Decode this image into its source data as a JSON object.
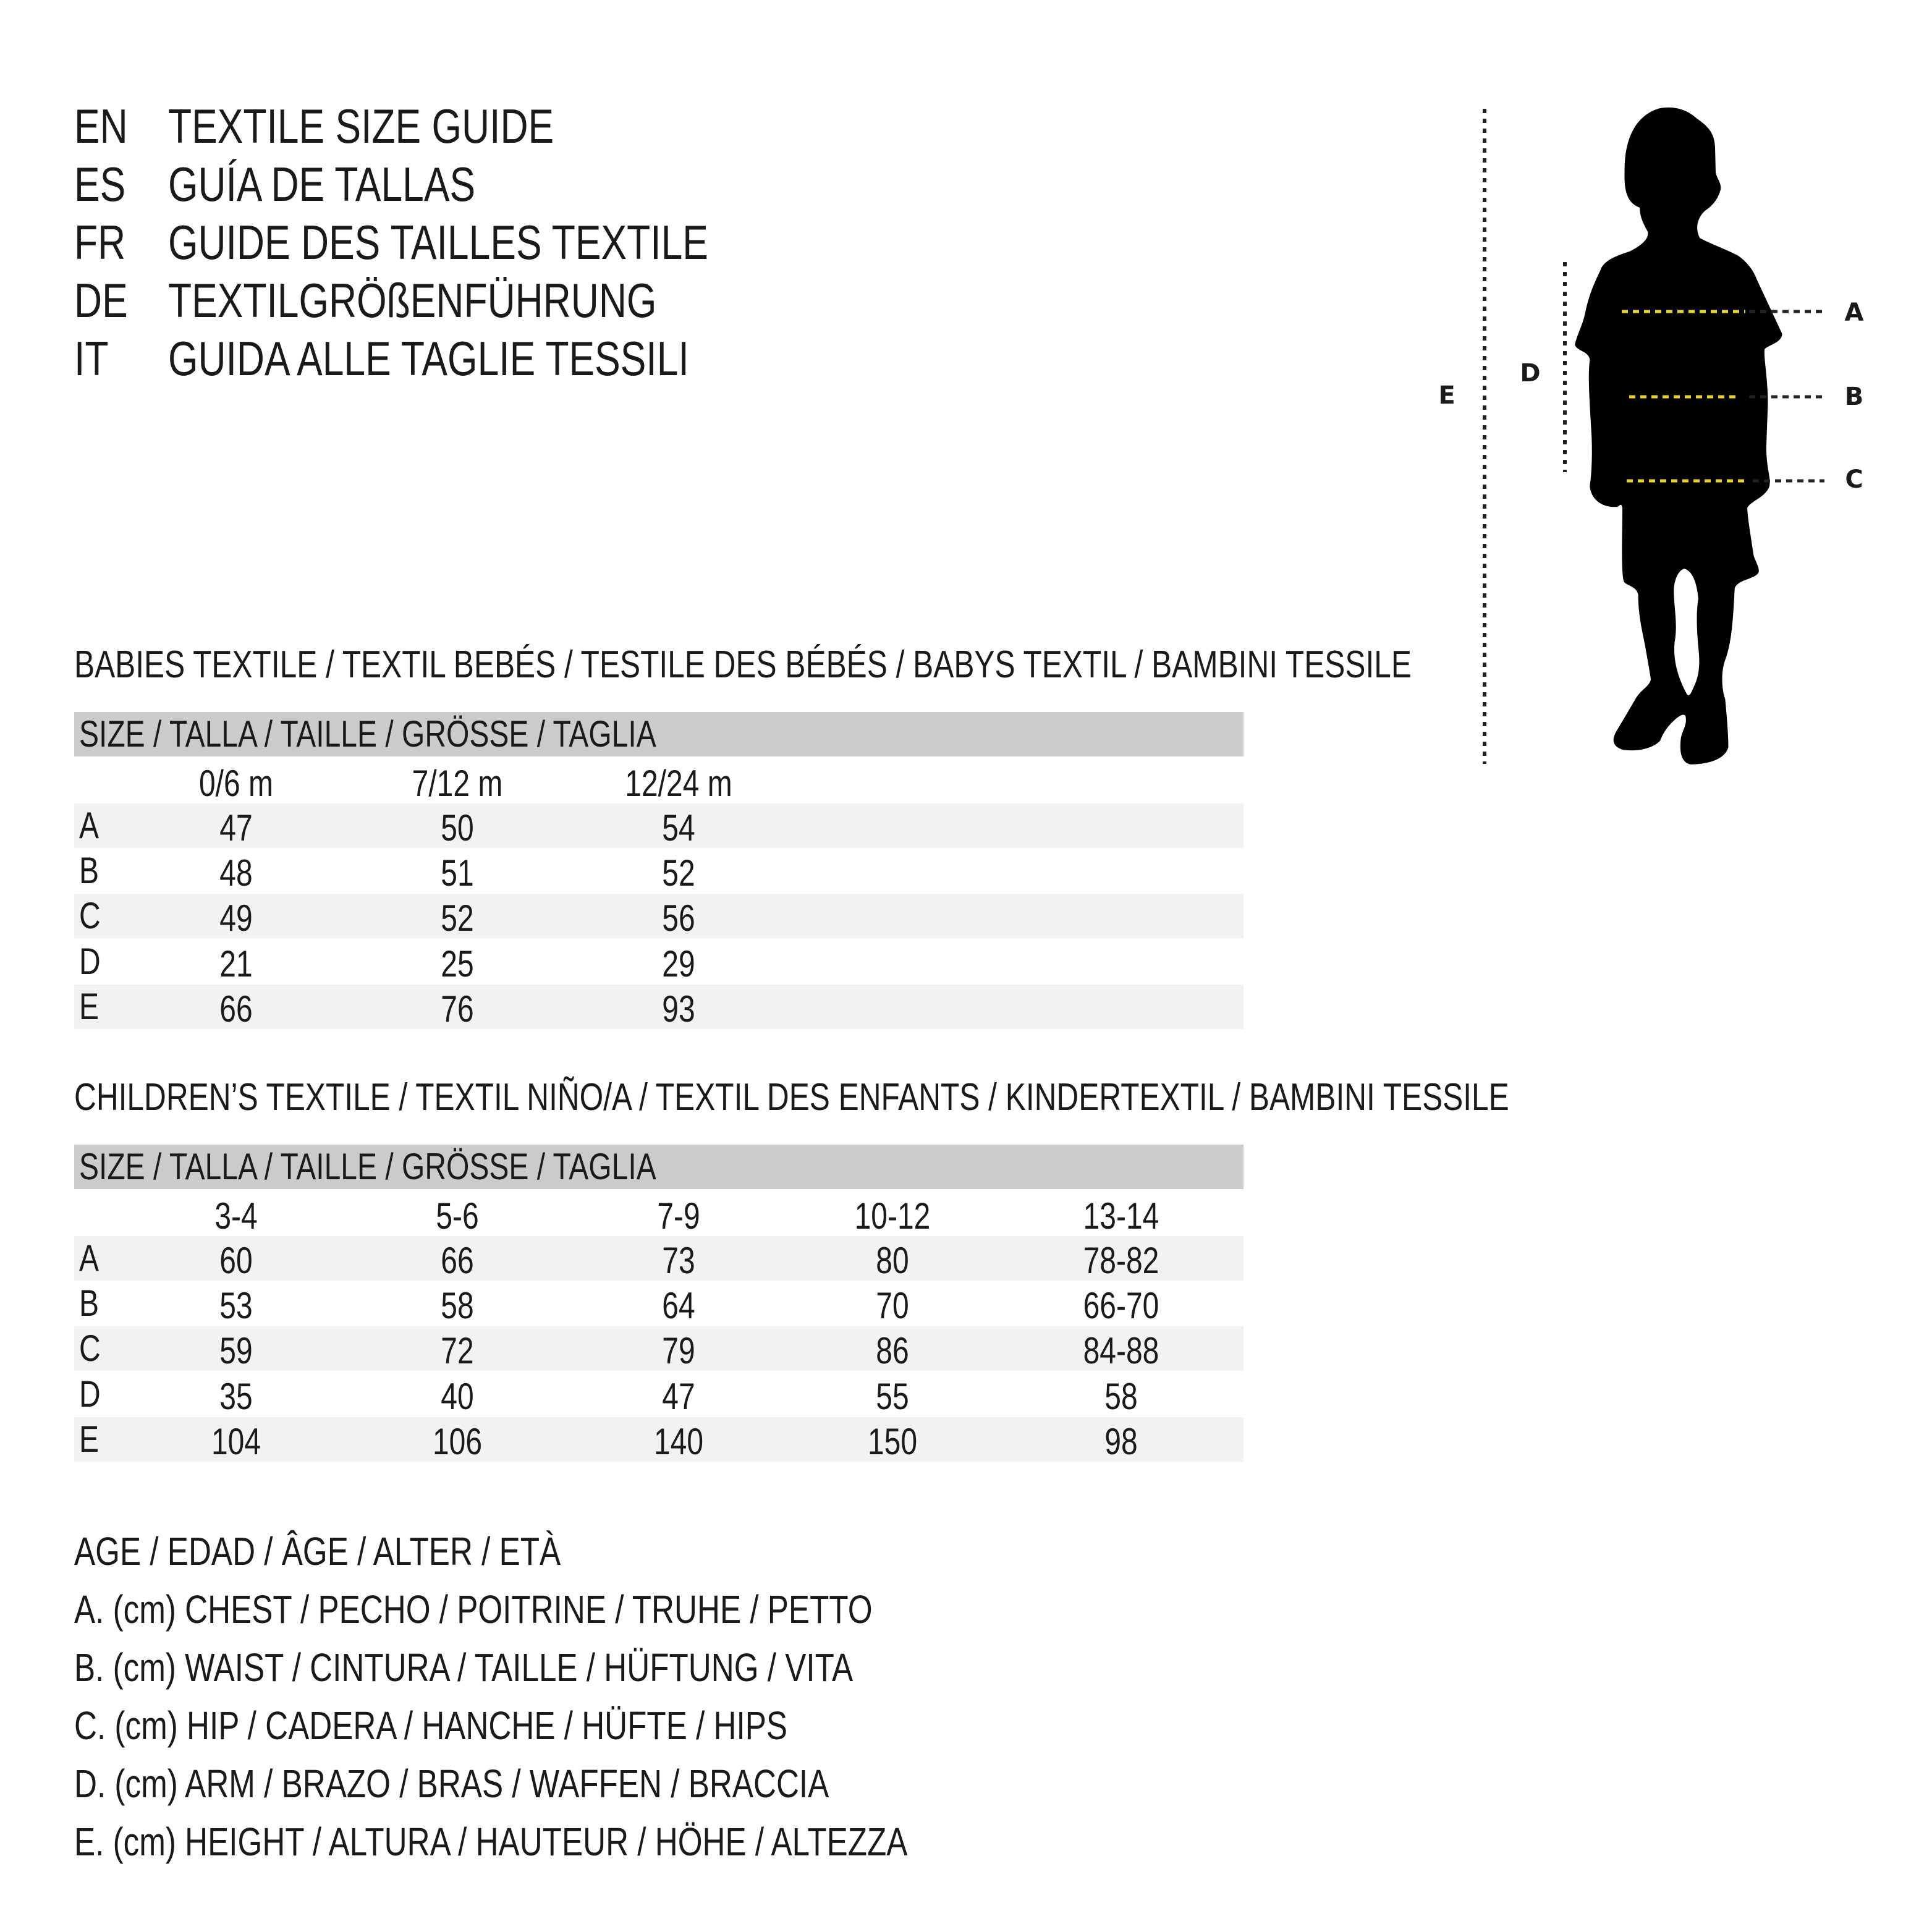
{
  "titles": [
    {
      "code": "EN",
      "text": "TEXTILE SIZE GUIDE"
    },
    {
      "code": "ES",
      "text": "GUÍA DE TALLAS"
    },
    {
      "code": "FR",
      "text": "GUIDE DES TAILLES TEXTILE"
    },
    {
      "code": "DE",
      "text": "TEXTILGRÖßENFÜHRUNG"
    },
    {
      "code": "IT",
      "text": "GUIDA ALLE TAGLIE TESSILI"
    }
  ],
  "babies": {
    "heading": "BABIES TEXTILE / TEXTIL BEBÉS / TESTILE DES BÉBÉS / BABYS TEXTIL / BAMBINI TESSILE",
    "size_label": "SIZE / TALLA / TAILLE / GRÖSSE / TAGLIA",
    "columns": [
      "0/6 m",
      "7/12 m",
      "12/24 m"
    ],
    "rows": [
      {
        "label": "A",
        "values": [
          "47",
          "50",
          "54"
        ]
      },
      {
        "label": "B",
        "values": [
          "48",
          "51",
          "52"
        ]
      },
      {
        "label": "C",
        "values": [
          "49",
          "52",
          "56"
        ]
      },
      {
        "label": "D",
        "values": [
          "21",
          "25",
          "29"
        ]
      },
      {
        "label": "E",
        "values": [
          "66",
          "76",
          "93"
        ]
      }
    ]
  },
  "children": {
    "heading": "CHILDREN’S TEXTILE / TEXTIL NIÑO/A / TEXTIL DES ENFANTS / KINDERTEXTIL / BAMBINI TESSILE",
    "size_label": "SIZE / TALLA / TAILLE / GRÖSSE / TAGLIA",
    "columns": [
      "3-4",
      "5-6",
      "7-9",
      "10-12",
      "13-14"
    ],
    "rows": [
      {
        "label": "A",
        "values": [
          "60",
          "66",
          "73",
          "80",
          "78-82"
        ]
      },
      {
        "label": "B",
        "values": [
          "53",
          "58",
          "64",
          "70",
          "66-70"
        ]
      },
      {
        "label": "C",
        "values": [
          "59",
          "72",
          "79",
          "86",
          "84-88"
        ]
      },
      {
        "label": "D",
        "values": [
          "35",
          "40",
          "47",
          "55",
          "58"
        ]
      },
      {
        "label": "E",
        "values": [
          "104",
          "106",
          "140",
          "150",
          "98"
        ]
      }
    ]
  },
  "legend": [
    "AGE / EDAD / ÂGE / ALTER / ETÀ",
    "A. (cm) CHEST / PECHO / POITRINE / TRUHE / PETTO",
    "B. (cm) WAIST / CINTURA / TAILLE / HÜFTUNG / VITA",
    "C. (cm) HIP / CADERA / HANCHE / HÜFTE / HIPS",
    "D. (cm) ARM / BRAZO / BRAS / WAFFEN / BRACCIA",
    "E. (cm) HEIGHT / ALTURA / HAUTEUR / HÖHE / ALTEZZA"
  ],
  "figure": {
    "labels": {
      "A": "A",
      "B": "B",
      "C": "C",
      "D": "D",
      "E": "E"
    },
    "icon": "child-silhouette",
    "colors": {
      "measure_line": "#e8d23a",
      "silhouette": "#000000",
      "header_bar": "#cbcbcc",
      "stripe": "#f2f2f2"
    }
  }
}
